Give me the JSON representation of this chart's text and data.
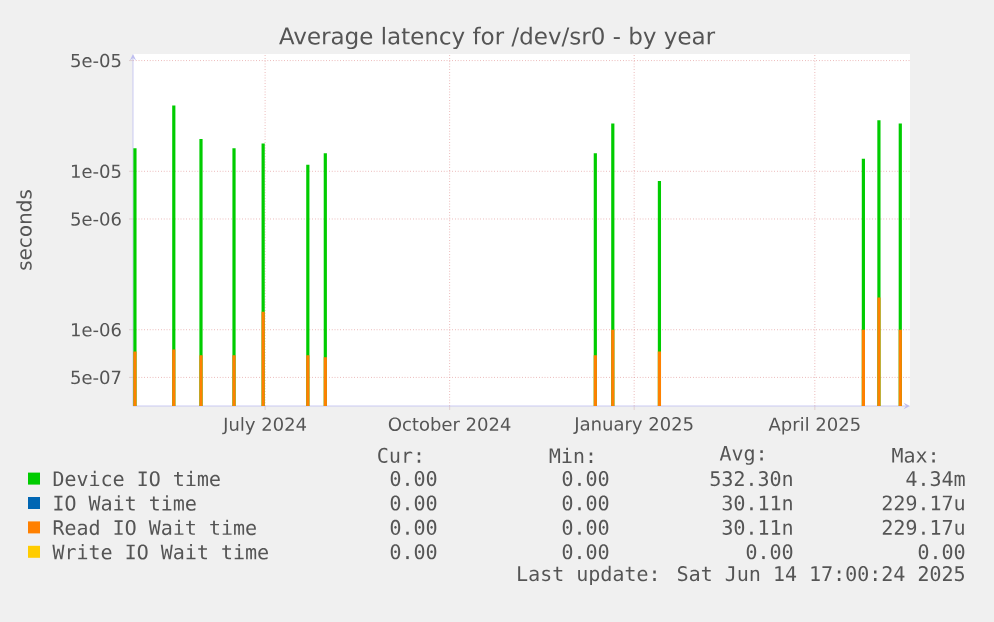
{
  "chart_data": {
    "type": "bar",
    "title": "Average latency for /dev/sr0 - by year",
    "ylabel": "seconds",
    "x": [
      "2024-05-11",
      "2024-05-31",
      "2024-06-14",
      "2024-07-01",
      "2024-07-16",
      "2024-08-08",
      "2024-08-17",
      "2025-01-03",
      "2025-01-12",
      "2025-02-05",
      "2025-05-21",
      "2025-05-29",
      "2025-06-09"
    ],
    "series": [
      {
        "name": "Device IO time",
        "color": "#00cc00",
        "values": [
          1.4e-05,
          2.6e-05,
          1.6e-05,
          1.4e-05,
          1.5e-05,
          1.1e-05,
          1.3e-05,
          1.3e-05,
          2e-05,
          8.7e-06,
          1.2e-05,
          2.1e-05,
          2e-05
        ]
      },
      {
        "name": "IO Wait time",
        "color": "#0066b3",
        "values": [
          null,
          null,
          null,
          null,
          null,
          null,
          null,
          null,
          null,
          null,
          null,
          null,
          null
        ]
      },
      {
        "name": "Read IO Wait time",
        "color": "#ff8000",
        "values": [
          7.3e-07,
          7.5e-07,
          6.9e-07,
          6.9e-07,
          1.3e-06,
          6.9e-07,
          6.7e-07,
          6.9e-07,
          1e-06,
          7.3e-07,
          1e-06,
          1.6e-06,
          1e-06
        ]
      },
      {
        "name": "Write IO Wait time",
        "color": "#ffcc00",
        "values": [
          null,
          null,
          null,
          null,
          null,
          null,
          null,
          null,
          null,
          null,
          null,
          null,
          null
        ]
      }
    ],
    "xlim": [
      "2024-05-10",
      "2025-06-14"
    ],
    "xticks": [
      {
        "value": "2024-07-17",
        "label": "July 2024"
      },
      {
        "value": "2024-10-20",
        "label": "October 2024"
      },
      {
        "value": "2025-01-23",
        "label": "January 2025"
      },
      {
        "value": "2025-04-26",
        "label": "April 2025"
      }
    ],
    "ylim": [
      3.3e-07,
      5.5e-05
    ],
    "yticks": [
      {
        "value": 5e-07,
        "label": "5e-07"
      },
      {
        "value": 1e-06,
        "label": "1e-06"
      },
      {
        "value": 5e-06,
        "label": "5e-06"
      },
      {
        "value": 1e-05,
        "label": "1e-05"
      },
      {
        "value": 5e-05,
        "label": "5e-05"
      }
    ],
    "log": true,
    "grid": true,
    "legend": "bottom",
    "annotations": [
      "Cur:",
      "Min:",
      "Avg:",
      "Max:",
      "0.00",
      "0.00",
      "532.30n",
      "4.34m",
      "0.00",
      "0.00",
      "30.11n",
      "229.17u",
      "0.00",
      "0.00",
      "30.11n",
      "229.17u",
      "0.00",
      "0.00",
      "0.00",
      "0.00",
      "Last update: Sat Jun 14 17:00:24 2025"
    ]
  }
}
